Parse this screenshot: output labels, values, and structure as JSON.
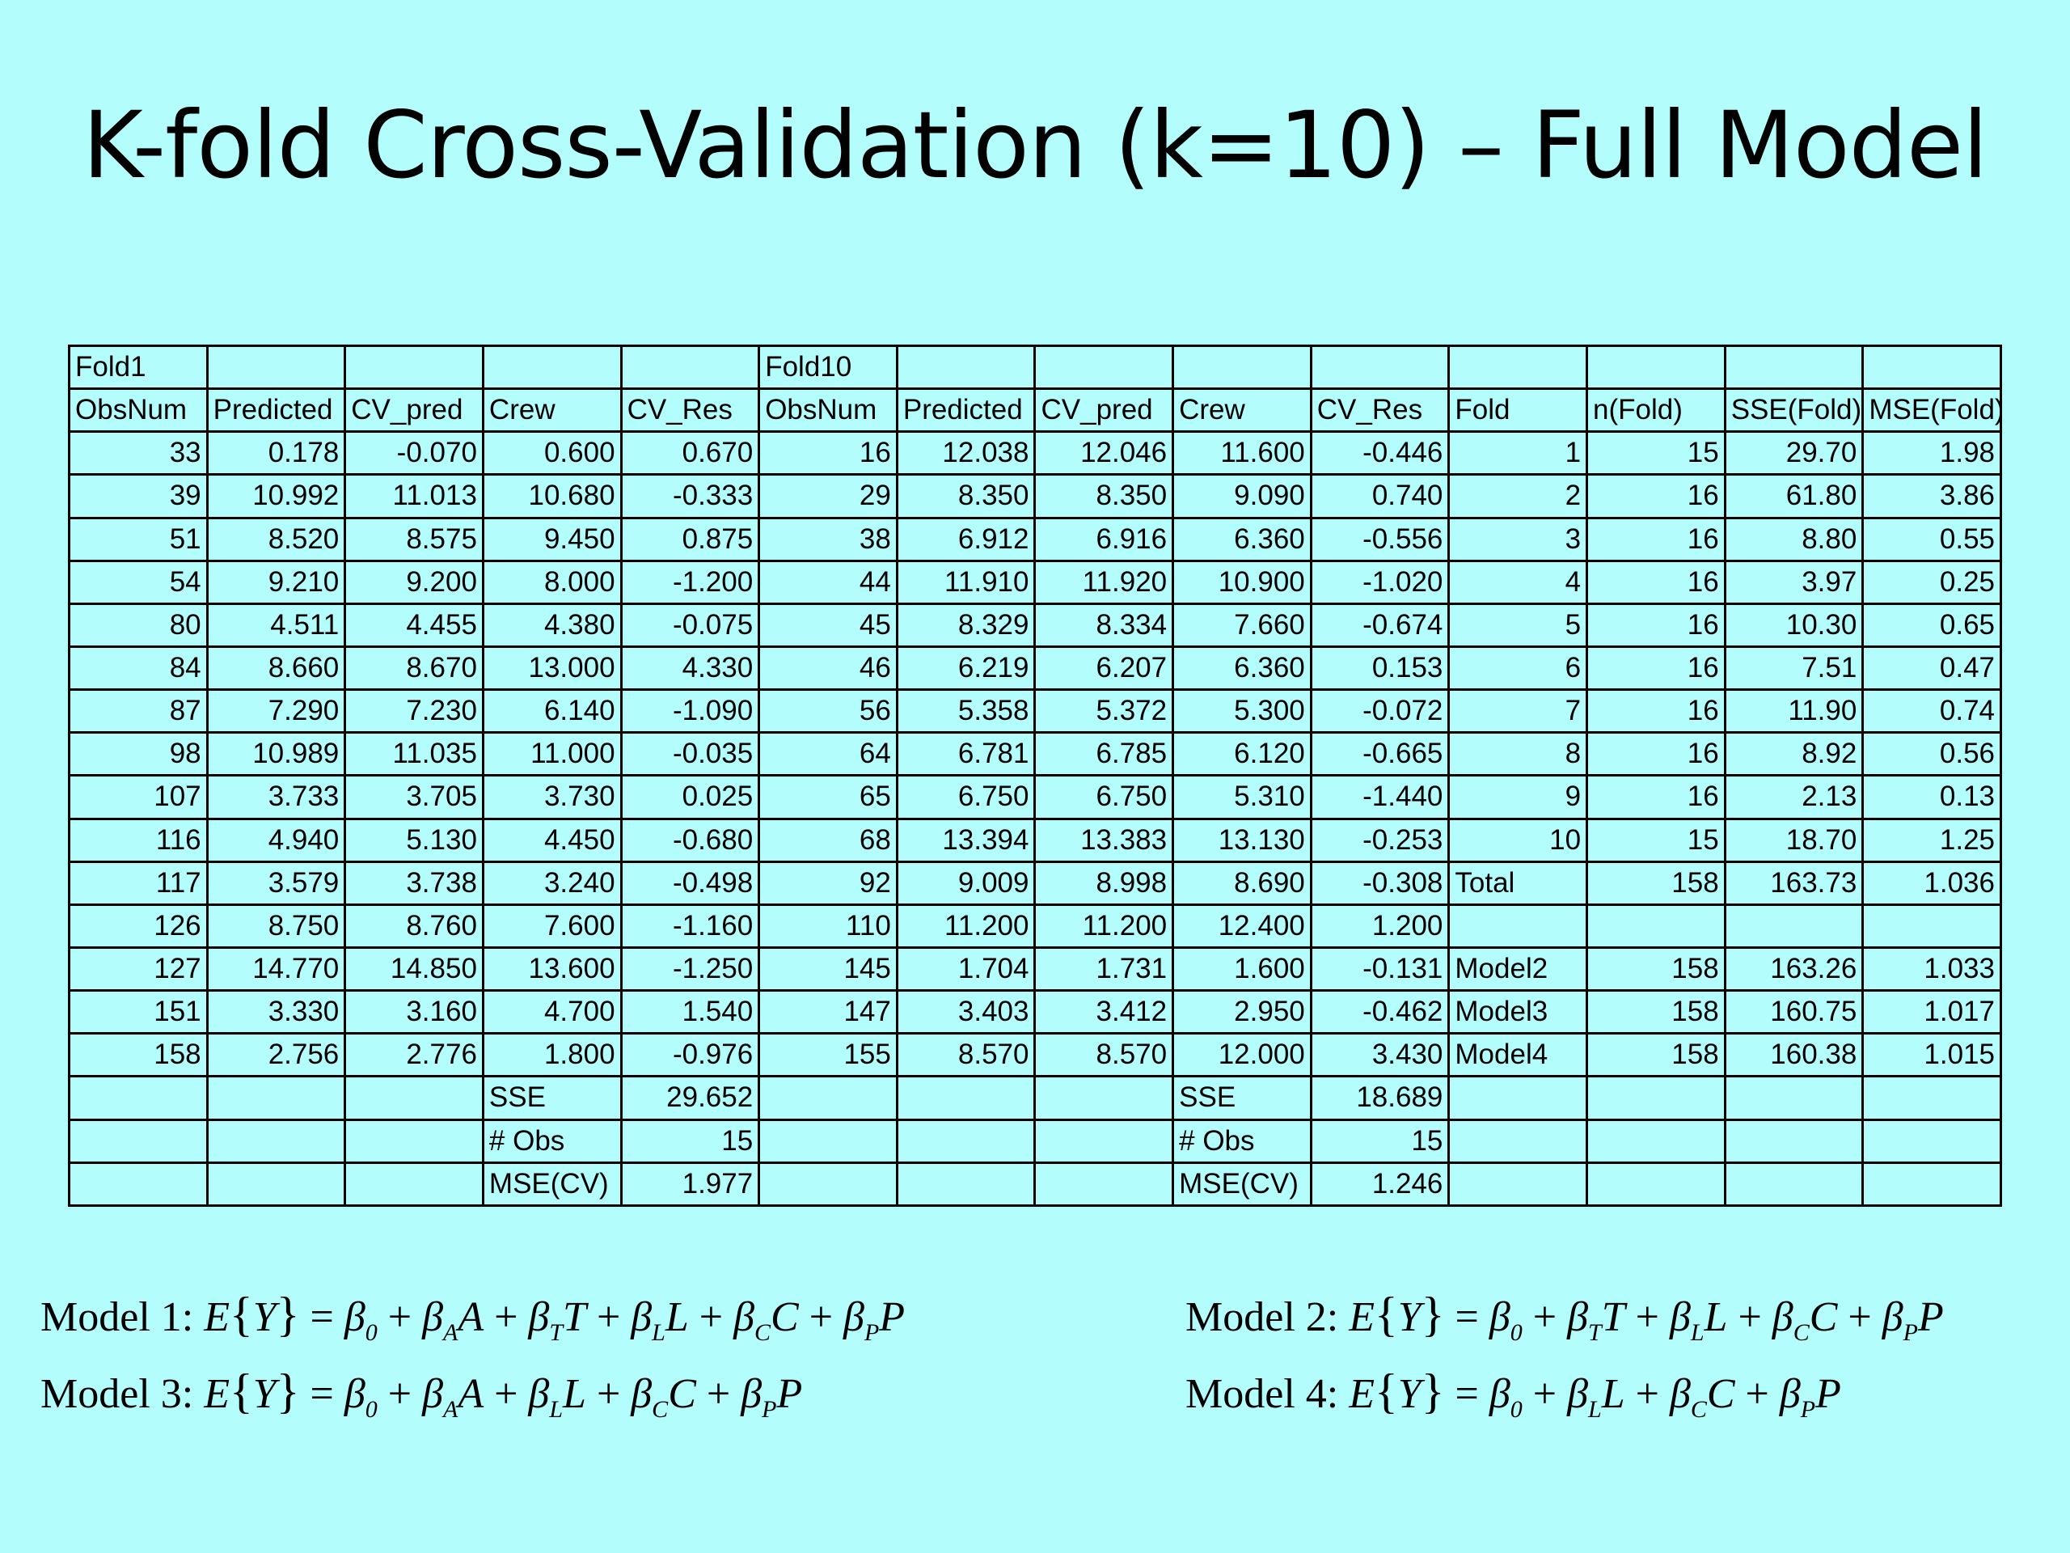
{
  "title": "K-fold Cross-Validation (k=10) – Full Model",
  "table": {
    "rows": [
      [
        "Fold1",
        "",
        "",
        "",
        "",
        "Fold10",
        "",
        "",
        "",
        "",
        "",
        "",
        "",
        ""
      ],
      [
        "ObsNum",
        "Predicted",
        "CV_pred",
        "Crew",
        "CV_Res",
        "ObsNum",
        "Predicted",
        "CV_pred",
        "Crew",
        "CV_Res",
        "Fold",
        "n(Fold)",
        "SSE(Fold)",
        "MSE(Fold)"
      ],
      [
        "33",
        "0.178",
        "-0.070",
        "0.600",
        "0.670",
        "16",
        "12.038",
        "12.046",
        "11.600",
        "-0.446",
        "1",
        "15",
        "29.70",
        "1.98"
      ],
      [
        "39",
        "10.992",
        "11.013",
        "10.680",
        "-0.333",
        "29",
        "8.350",
        "8.350",
        "9.090",
        "0.740",
        "2",
        "16",
        "61.80",
        "3.86"
      ],
      [
        "51",
        "8.520",
        "8.575",
        "9.450",
        "0.875",
        "38",
        "6.912",
        "6.916",
        "6.360",
        "-0.556",
        "3",
        "16",
        "8.80",
        "0.55"
      ],
      [
        "54",
        "9.210",
        "9.200",
        "8.000",
        "-1.200",
        "44",
        "11.910",
        "11.920",
        "10.900",
        "-1.020",
        "4",
        "16",
        "3.97",
        "0.25"
      ],
      [
        "80",
        "4.511",
        "4.455",
        "4.380",
        "-0.075",
        "45",
        "8.329",
        "8.334",
        "7.660",
        "-0.674",
        "5",
        "16",
        "10.30",
        "0.65"
      ],
      [
        "84",
        "8.660",
        "8.670",
        "13.000",
        "4.330",
        "46",
        "6.219",
        "6.207",
        "6.360",
        "0.153",
        "6",
        "16",
        "7.51",
        "0.47"
      ],
      [
        "87",
        "7.290",
        "7.230",
        "6.140",
        "-1.090",
        "56",
        "5.358",
        "5.372",
        "5.300",
        "-0.072",
        "7",
        "16",
        "11.90",
        "0.74"
      ],
      [
        "98",
        "10.989",
        "11.035",
        "11.000",
        "-0.035",
        "64",
        "6.781",
        "6.785",
        "6.120",
        "-0.665",
        "8",
        "16",
        "8.92",
        "0.56"
      ],
      [
        "107",
        "3.733",
        "3.705",
        "3.730",
        "0.025",
        "65",
        "6.750",
        "6.750",
        "5.310",
        "-1.440",
        "9",
        "16",
        "2.13",
        "0.13"
      ],
      [
        "116",
        "4.940",
        "5.130",
        "4.450",
        "-0.680",
        "68",
        "13.394",
        "13.383",
        "13.130",
        "-0.253",
        "10",
        "15",
        "18.70",
        "1.25"
      ],
      [
        "117",
        "3.579",
        "3.738",
        "3.240",
        "-0.498",
        "92",
        "9.009",
        "8.998",
        "8.690",
        "-0.308",
        "Total",
        "158",
        "163.73",
        "1.036"
      ],
      [
        "126",
        "8.750",
        "8.760",
        "7.600",
        "-1.160",
        "110",
        "11.200",
        "11.200",
        "12.400",
        "1.200",
        "",
        "",
        "",
        ""
      ],
      [
        "127",
        "14.770",
        "14.850",
        "13.600",
        "-1.250",
        "145",
        "1.704",
        "1.731",
        "1.600",
        "-0.131",
        "Model2",
        "158",
        "163.26",
        "1.033"
      ],
      [
        "151",
        "3.330",
        "3.160",
        "4.700",
        "1.540",
        "147",
        "3.403",
        "3.412",
        "2.950",
        "-0.462",
        "Model3",
        "158",
        "160.75",
        "1.017"
      ],
      [
        "158",
        "2.756",
        "2.776",
        "1.800",
        "-0.976",
        "155",
        "8.570",
        "8.570",
        "12.000",
        "3.430",
        "Model4",
        "158",
        "160.38",
        "1.015"
      ],
      [
        "",
        "",
        "",
        "SSE",
        "29.652",
        "",
        "",
        "",
        "SSE",
        "18.689",
        "",
        "",
        "",
        ""
      ],
      [
        "",
        "",
        "",
        "# Obs",
        "15",
        "",
        "",
        "",
        "# Obs",
        "15",
        "",
        "",
        "",
        ""
      ],
      [
        "",
        "",
        "",
        "MSE(CV)",
        "1.977",
        "",
        "",
        "",
        "MSE(CV)",
        "1.246",
        "",
        "",
        "",
        ""
      ]
    ]
  },
  "formulas": {
    "model1": {
      "label": "Model 1: ",
      "lhs_E": "E",
      "lhs_open": "{",
      "lhs_Y": "Y",
      "lhs_close": "}",
      "rhs_eq": " = ",
      "terms": [
        {
          "beta": "β",
          "sub": "0",
          "var": ""
        },
        {
          "beta": "β",
          "sub": "A",
          "var": "A"
        },
        {
          "beta": "β",
          "sub": "T",
          "var": "T"
        },
        {
          "beta": "β",
          "sub": "L",
          "var": "L"
        },
        {
          "beta": "β",
          "sub": "C",
          "var": "C"
        },
        {
          "beta": "β",
          "sub": "P",
          "var": "P"
        }
      ]
    },
    "model2": {
      "label": "Model 2: ",
      "lhs_E": "E",
      "lhs_open": "{",
      "lhs_Y": "Y",
      "lhs_close": "}",
      "rhs_eq": " = ",
      "terms": [
        {
          "beta": "β",
          "sub": "0",
          "var": ""
        },
        {
          "beta": "β",
          "sub": "T",
          "var": "T"
        },
        {
          "beta": "β",
          "sub": "L",
          "var": "L"
        },
        {
          "beta": "β",
          "sub": "C",
          "var": "C"
        },
        {
          "beta": "β",
          "sub": "P",
          "var": "P"
        }
      ]
    },
    "model3": {
      "label": "Model 3: ",
      "lhs_E": "E",
      "lhs_open": "{",
      "lhs_Y": "Y",
      "lhs_close": "}",
      "rhs_eq": " = ",
      "terms": [
        {
          "beta": "β",
          "sub": "0",
          "var": ""
        },
        {
          "beta": "β",
          "sub": "A",
          "var": "A"
        },
        {
          "beta": "β",
          "sub": "L",
          "var": "L"
        },
        {
          "beta": "β",
          "sub": "C",
          "var": "C"
        },
        {
          "beta": "β",
          "sub": "P",
          "var": "P"
        }
      ]
    },
    "model4": {
      "label": "Model 4: ",
      "lhs_E": "E",
      "lhs_open": "{",
      "lhs_Y": "Y",
      "lhs_close": "}",
      "rhs_eq": " = ",
      "terms": [
        {
          "beta": "β",
          "sub": "0",
          "var": ""
        },
        {
          "beta": "β",
          "sub": "L",
          "var": "L"
        },
        {
          "beta": "β",
          "sub": "C",
          "var": "C"
        },
        {
          "beta": "β",
          "sub": "P",
          "var": "P"
        }
      ]
    }
  }
}
